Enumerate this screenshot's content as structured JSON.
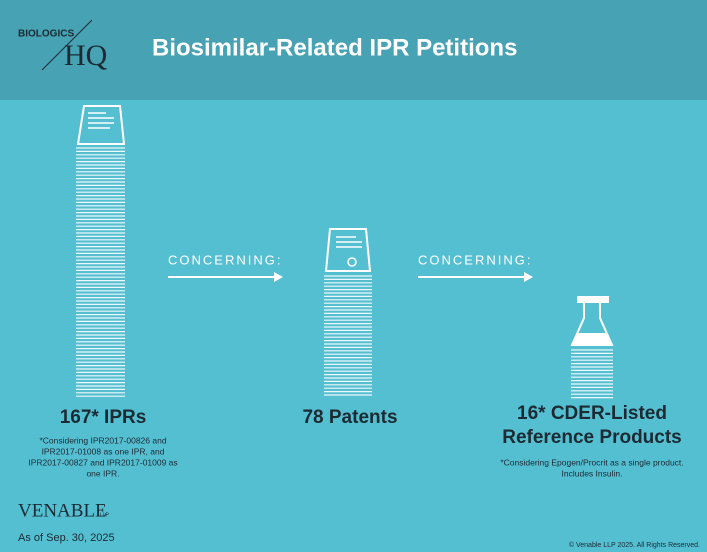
{
  "header": {
    "logo_top": "BIOLOGICS",
    "logo_main": "HQ",
    "title": "Biosimilar-Related IPR Petitions"
  },
  "connectors": [
    "CONCERNING:",
    "CONCERNING:"
  ],
  "items": [
    {
      "label": [
        "167* IPRs"
      ],
      "note": [
        "*Considering IPR2017-00826 and",
        "IPR2017-01008 as one IPR, and",
        "IPR2017-00827 and IPR2017-01009 as",
        "one IPR."
      ]
    },
    {
      "label": [
        "78 Patents"
      ],
      "note": []
    },
    {
      "label": [
        "16* CDER-Listed",
        "Reference Products"
      ],
      "note": [
        "*Considering Epogen/Procrit as a single product.",
        "Includes Insulin."
      ]
    }
  ],
  "footer": {
    "brand": "VENABLE",
    "brand_suffix": "LLP",
    "date": "As of Sep. 30, 2025",
    "copyright": "© Venable LLP 2025. All Rights Reserved."
  }
}
